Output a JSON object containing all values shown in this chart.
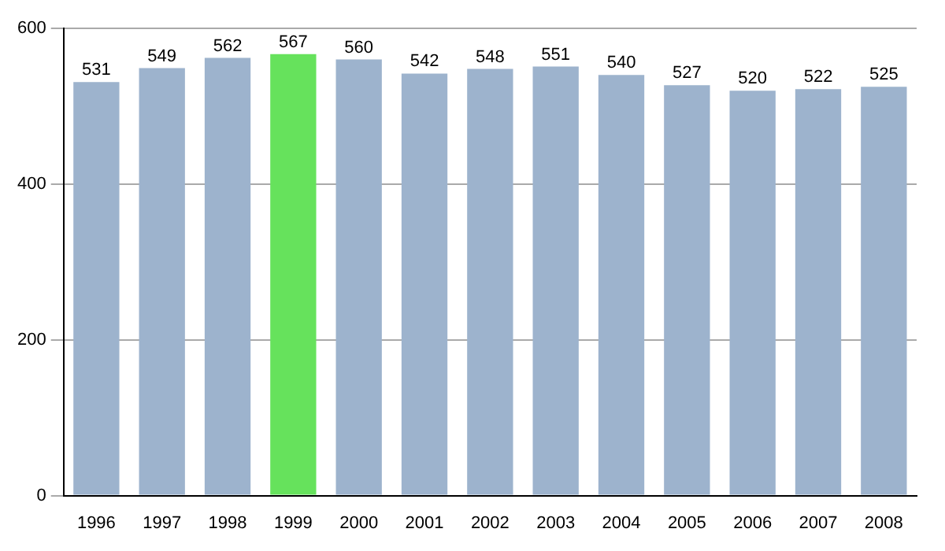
{
  "chart_data": {
    "type": "bar",
    "categories": [
      "1996",
      "1997",
      "1998",
      "1999",
      "2000",
      "2001",
      "2002",
      "2003",
      "2004",
      "2005",
      "2006",
      "2007",
      "2008"
    ],
    "values": [
      531,
      549,
      562,
      567,
      560,
      542,
      548,
      551,
      540,
      527,
      520,
      522,
      525
    ],
    "colors": [
      "#9db3cd",
      "#9db3cd",
      "#9db3cd",
      "#66e25c",
      "#9db3cd",
      "#9db3cd",
      "#9db3cd",
      "#9db3cd",
      "#9db3cd",
      "#9db3cd",
      "#9db3cd",
      "#9db3cd",
      "#9db3cd"
    ],
    "ylim": [
      0,
      600
    ],
    "yticks": [
      0,
      200,
      400,
      600
    ],
    "grid": "y",
    "data_labels": true,
    "legend": false
  }
}
